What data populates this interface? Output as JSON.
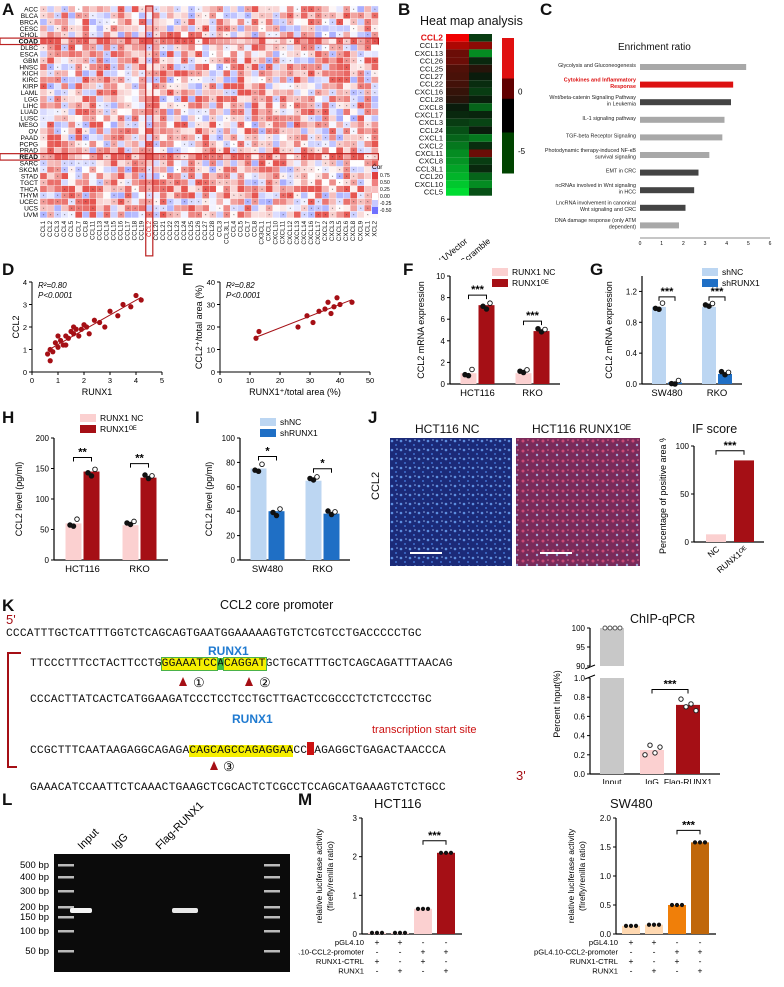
{
  "panel_labels": {
    "A": "A",
    "B": "B",
    "C": "C",
    "D": "D",
    "E": "E",
    "F": "F",
    "G": "G",
    "H": "H",
    "I": "I",
    "J": "J",
    "K": "K",
    "L": "L",
    "M": "M"
  },
  "colors": {
    "dark_red": "#a50f15",
    "light_pink": "#fbd0d0",
    "light_blue": "#bcd6f2",
    "mid_blue": "#1f6fc5",
    "grey": "#c8c8c8",
    "orange": "#f07f09",
    "dark_orange": "#c0670a"
  },
  "panelA": {
    "row_labels": [
      "ACC",
      "BLCA",
      "BRCA",
      "CESC",
      "CHOL",
      "COAD",
      "DLBC",
      "ESCA",
      "GBM",
      "HNSC",
      "KICH",
      "KIRC",
      "KIRP",
      "LAML",
      "LGG",
      "LIHC",
      "LUAD",
      "LUSC",
      "MESO",
      "OV",
      "PAAD",
      "PCPG",
      "PRAD",
      "READ",
      "SARC",
      "SKCM",
      "STAD",
      "TGCT",
      "THCA",
      "THYM",
      "UCEC",
      "UCS",
      "UVM"
    ],
    "bold_rows": [
      "COAD",
      "READ"
    ],
    "col_labels": [
      "CCL1",
      "CCL2",
      "CCL3",
      "CCL4",
      "CCL5",
      "CCL7",
      "CCL8",
      "CCL11",
      "CCL13",
      "CCL14",
      "CCL15",
      "CCL16",
      "CCL17",
      "CCL18",
      "CCL19",
      "CCL2",
      "CCL20",
      "CCL21",
      "CCL22",
      "CCL23",
      "CCL24",
      "CCL25",
      "CCL26",
      "CCL27",
      "CCL28",
      "CCL3",
      "CCL3L1",
      "CCL4",
      "CCL5",
      "CCL7",
      "CCL8",
      "CX3CL1",
      "CXCL1",
      "CXCL10",
      "CXCL11",
      "CXCL12",
      "CXCL13",
      "CXCL14",
      "CXCL16",
      "CXCL17",
      "CXCL2",
      "CXCL3",
      "CXCL5",
      "CXCL6",
      "CXCL8",
      "CXCL9",
      "XCL1",
      "XCL2"
    ],
    "highlight_col": "CCL2",
    "legend_title": "Cor",
    "legend_ticks": [
      "0.75",
      "0.50",
      "0.25",
      "0.00",
      "-0.25",
      "-0.50"
    ]
  },
  "panelB": {
    "title": "Heat map analysis",
    "genes": [
      "CCL2",
      "CCL17",
      "CXCL13",
      "CCL26",
      "CCL25",
      "CCL27",
      "CCL22",
      "CXCL16",
      "CCL28",
      "CXCL8",
      "CXCL17",
      "CXCL3",
      "CCL24",
      "CXCL1",
      "CXCL2",
      "CXCL11",
      "CXCL8",
      "CCL3L1",
      "CCL20",
      "CXCL10",
      "CCL5"
    ],
    "highlight_gene": "CCL2",
    "conditions": [
      "HCT116 RUNX1/Vector",
      "SW480 shRUNX1/Scramble"
    ],
    "scale_ticks": [
      "0",
      "-5"
    ]
  },
  "panelC": {
    "title": "Enrichment ratio",
    "chart_data": {
      "type": "bar",
      "orientation": "horizontal",
      "categories": [
        "Glycolysis and Gluconeogenesis",
        "Cytokines and Inflammatory Response",
        "Wnt/beta-catenin Signaling Pathway in Leukemia",
        "IL-1 signaling pathway",
        "TGF-beta Receptor Signaling",
        "Photodynamic therapy-induced NF-κB survival signaling",
        "EMT in CRC",
        "ncRNAs involved in Wnt signaling in HCC",
        "LncRNA involvement in canonical Wnt signaling and CRC",
        "DNA damage response (only ATM dependent)"
      ],
      "values": [
        4.9,
        4.3,
        4.2,
        3.9,
        3.8,
        3.2,
        2.7,
        2.5,
        2.1,
        1.8
      ],
      "highlight": "Cytokines and Inflammatory Response",
      "xlim": [
        0,
        6
      ],
      "xticks": [
        "0",
        "1",
        "2",
        "3",
        "4",
        "5",
        "6"
      ]
    }
  },
  "panelD": {
    "chart_data": {
      "type": "scatter",
      "xlabel": "RUNX1",
      "ylabel": "CCL2",
      "xlim": [
        0,
        5
      ],
      "ylim": [
        0,
        4
      ],
      "x": [
        0.6,
        0.7,
        0.8,
        0.9,
        1.0,
        1.1,
        1.2,
        1.3,
        1.4,
        1.5,
        1.6,
        1.7,
        1.8,
        2.0,
        2.1,
        2.2,
        2.4,
        2.6,
        2.8,
        3.0,
        3.3,
        3.5,
        3.8,
        4.0,
        4.2,
        0.7,
        1.0,
        1.3,
        1.6,
        1.9
      ],
      "y": [
        0.8,
        1.0,
        0.9,
        1.3,
        1.1,
        1.4,
        1.2,
        1.6,
        1.5,
        1.8,
        1.7,
        1.9,
        1.6,
        2.1,
        2.0,
        1.7,
        2.3,
        2.2,
        2.0,
        2.7,
        2.5,
        3.0,
        2.9,
        3.4,
        3.2,
        0.5,
        1.6,
        1.2,
        2.0,
        1.9
      ],
      "xticks": [
        "0",
        "1",
        "2",
        "3",
        "4",
        "5"
      ],
      "yticks": [
        "0",
        "1",
        "2",
        "3",
        "4"
      ],
      "annotations": [
        "R²=0.80",
        "P<0.0001"
      ]
    }
  },
  "panelE": {
    "chart_data": {
      "type": "scatter",
      "xlabel": "RUNX1⁺/total area (%)",
      "ylabel": "CCL2⁺/total area (%)",
      "xlim": [
        0,
        50
      ],
      "ylim": [
        0,
        40
      ],
      "x": [
        12,
        13,
        26,
        29,
        31,
        33,
        35,
        36,
        37,
        38,
        39,
        40,
        44
      ],
      "y": [
        15,
        18,
        20,
        25,
        22,
        27,
        28,
        31,
        26,
        29,
        33,
        30,
        31
      ],
      "xticks": [
        "0",
        "10",
        "20",
        "30",
        "40",
        "50"
      ],
      "yticks": [
        "0",
        "10",
        "20",
        "30",
        "40"
      ],
      "annotations": [
        "R²=0.82",
        "P<0.0001"
      ]
    }
  },
  "panelF": {
    "chart_data": {
      "type": "bar",
      "categories": [
        "HCT116",
        "RKO"
      ],
      "series": [
        {
          "name": "RUNX1 NC",
          "values": [
            1.0,
            1.0
          ]
        },
        {
          "name": "RUNX1ᴼᴱ",
          "values": [
            7.3,
            4.9
          ]
        }
      ],
      "ylabel": "CCL2 mRNA expression",
      "ylim": [
        0,
        10
      ],
      "yticks": [
        "0",
        "2",
        "4",
        "6",
        "8",
        "10"
      ],
      "significance": [
        "***",
        "***"
      ]
    }
  },
  "panelG": {
    "chart_data": {
      "type": "bar",
      "categories": [
        "SW480",
        "RKO"
      ],
      "series": [
        {
          "name": "shNC",
          "values": [
            1.0,
            1.0
          ]
        },
        {
          "name": "shRUNX1",
          "values": [
            0.02,
            0.13
          ]
        }
      ],
      "ylabel": "CCL2 mRNA expression",
      "ylim": [
        0,
        1.4
      ],
      "yticks": [
        "0.0",
        "0.4",
        "0.8",
        "1.2"
      ],
      "significance": [
        "***",
        "***"
      ]
    }
  },
  "panelH": {
    "chart_data": {
      "type": "bar",
      "categories": [
        "HCT116",
        "RKO"
      ],
      "series": [
        {
          "name": "RUNX1 NC",
          "values": [
            60,
            57
          ]
        },
        {
          "name": "RUNX1ᴼᴱ",
          "values": [
            145,
            135
          ]
        }
      ],
      "ylabel": "CCL2 level (pg/ml)",
      "ylim": [
        0,
        200
      ],
      "yticks": [
        "0",
        "50",
        "100",
        "150",
        "200"
      ],
      "significance": [
        "**",
        "**"
      ]
    }
  },
  "panelI": {
    "chart_data": {
      "type": "bar",
      "categories": [
        "SW480",
        "RKO"
      ],
      "series": [
        {
          "name": "shNC",
          "values": [
            75,
            65
          ]
        },
        {
          "name": "shRUNX1",
          "values": [
            40,
            38
          ]
        }
      ],
      "ylabel": "CCL2 level (pg/ml)",
      "ylim": [
        0,
        100
      ],
      "yticks": [
        "0",
        "20",
        "40",
        "60",
        "80",
        "100"
      ],
      "significance": [
        "*",
        "*"
      ]
    }
  },
  "panelJ": {
    "image_labels": [
      "HCT116 NC",
      "HCT116 RUNX1ᴼᴱ"
    ],
    "side_label": "CCL2",
    "score_title": "IF score",
    "chart_data": {
      "type": "bar",
      "categories": [
        "NC",
        "RUNX1ᴼᴱ"
      ],
      "values": [
        8,
        85
      ],
      "ylabel": "Percentage of positive area %",
      "ylim": [
        0,
        100
      ],
      "yticks": [
        "0",
        "50",
        "100"
      ],
      "significance": [
        "***"
      ]
    }
  },
  "panelK": {
    "title": "CCL2 core promoter",
    "five_prime": "5'",
    "three_prime": "3'",
    "line1": "CCCATTTGCTCATTTGGTCTCAGCAGTGAATGGAAAAAGTGTCTCGTCCTGACCCCCTGC",
    "line2_a": "TTCCCTTTCCTACTTCCTG",
    "line2_b": "GGAAATCC",
    "line2_c": "A",
    "line2_d": "CAGGAT",
    "line2_e": "GCTGCATTTGCTCAGCAGATTTAACAG",
    "line3": "CCCACTTATCACTCATGGAAGATCCCTCCTCCTGCTTGACTCCGCCCTCTCTCCCTGC",
    "line4_a": "CCGCTTTCAATAAGAGGCAGAGA",
    "line4_b": "CAGCAGCCAGAGGAA",
    "line4_c": "CC",
    "line4_d": "AGAGGCTGAGACTAACCCA",
    "line5": "GAAACATCCAATTCTCAAACTGAAGCTCGCACTCTCGCCTCCAGCATGAAAGTCTCTGCC",
    "runx1_label": "RUNX1",
    "tss_label": "transcription start site",
    "site_labels": [
      "①",
      "②",
      "③"
    ],
    "chip_title": "ChIP-qPCR",
    "chip_chart": {
      "type": "bar",
      "categories": [
        "Input",
        "IgG",
        "Flag-RUNX1"
      ],
      "values": [
        100,
        0.25,
        0.72
      ],
      "ylabel": "Percent Input(%)",
      "yticks_top": [
        "90",
        "95",
        "100"
      ],
      "yticks_bottom": [
        "0.0",
        "0.2",
        "0.4",
        "0.6",
        "0.8",
        "1.0"
      ],
      "significance": [
        "***"
      ]
    }
  },
  "panelL": {
    "lane_labels": [
      "Input",
      "IgG",
      "Flag-RUNX1"
    ],
    "ladder": [
      "500 bp",
      "400 bp",
      "300 bp",
      "200 bp",
      "150 bp",
      "100 bp",
      "50 bp"
    ]
  },
  "panelM": {
    "charts": [
      {
        "title": "HCT116",
        "type": "bar",
        "ylabel": "relative luciferase activity (firefly/renilla ratio)",
        "ylim": [
          0,
          3
        ],
        "yticks": [
          "0",
          "1",
          "2",
          "3"
        ],
        "values": [
          0.03,
          0.03,
          0.65,
          2.1
        ],
        "significance": [
          "***"
        ]
      },
      {
        "title": "SW480",
        "type": "bar",
        "ylabel": "relative luciferase activity (firefly/renilla ratio)",
        "ylim": [
          0,
          2
        ],
        "yticks": [
          "0.0",
          "0.5",
          "1.0",
          "1.5",
          "2.0"
        ],
        "values": [
          0.14,
          0.16,
          0.5,
          1.58
        ],
        "significance": [
          "***"
        ]
      }
    ],
    "row_labels": [
      "pGL4.10",
      "pGL4.10-CCL2-promoter",
      "RUNX1-CTRL",
      "RUNX1"
    ],
    "signs": [
      [
        "+",
        "+",
        "-",
        "-"
      ],
      [
        "-",
        "-",
        "+",
        "+"
      ],
      [
        "+",
        "-",
        "+",
        "-"
      ],
      [
        "-",
        "+",
        "-",
        "+"
      ]
    ]
  }
}
